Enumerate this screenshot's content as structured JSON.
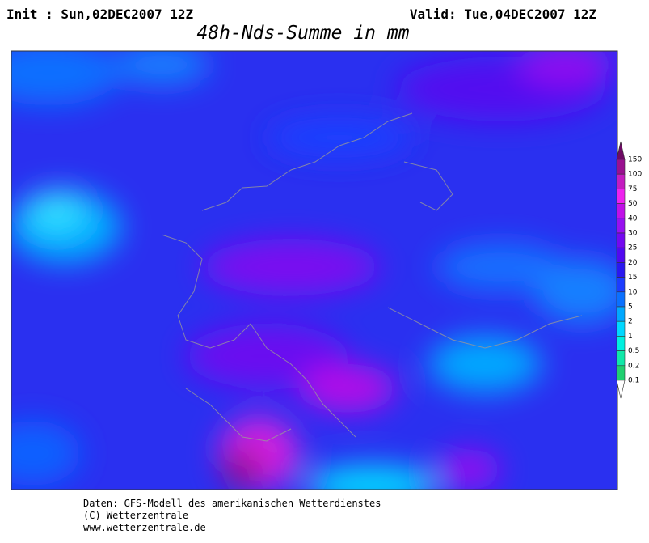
{
  "header": {
    "init": "Init : Sun,02DEC2007 12Z",
    "valid": "Valid: Tue,04DEC2007 12Z",
    "title": "48h-Nds-Summe in mm"
  },
  "colorbar": {
    "levels": [
      150,
      100,
      75,
      50,
      40,
      30,
      25,
      20,
      15,
      10,
      5,
      2,
      1,
      0.5,
      0.2,
      0.1
    ],
    "colors": [
      "#6e0a64",
      "#9a1090",
      "#c41cc0",
      "#ee22ee",
      "#c010e8",
      "#9810f0",
      "#7408f0",
      "#5208f0",
      "#2a18f0",
      "#1c3cff",
      "#0a70ff",
      "#00a8ff",
      "#00d8ff",
      "#00f0e0",
      "#10e8a8",
      "#20d070",
      "#ffffff"
    ]
  },
  "footer": {
    "line1": "Daten: GFS-Modell des amerikanischen Wetterdienstes",
    "line2": "(C) Wetterzentrale",
    "line3": "www.wetterzentrale.de"
  }
}
